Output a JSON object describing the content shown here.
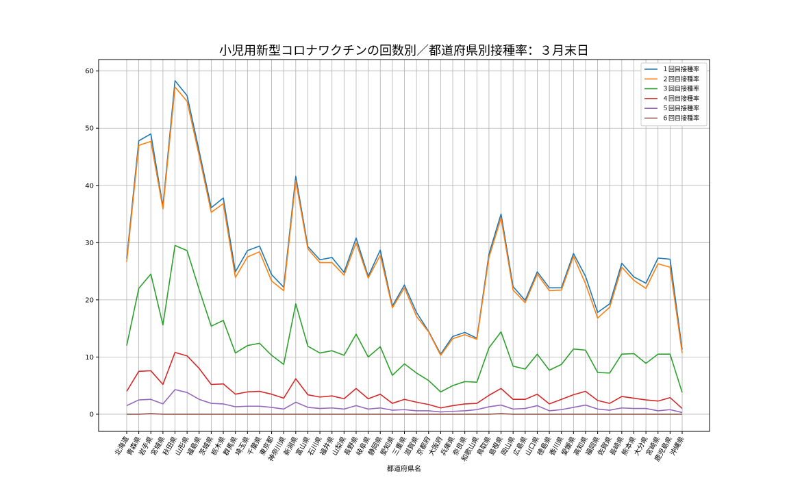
{
  "chart_data": {
    "type": "line",
    "title": "小児用新型コロナワクチンの回数別／都道府県別接種率：３月末日",
    "xlabel": "都道府県名",
    "ylabel": "",
    "ylim": [
      -3,
      62
    ],
    "yticks": [
      0,
      10,
      20,
      30,
      40,
      50,
      60
    ],
    "grid": true,
    "legend_position": "top-right",
    "categories": [
      "北海道",
      "青森県",
      "岩手県",
      "宮城県",
      "秋田県",
      "山形県",
      "福島県",
      "茨城県",
      "栃木県",
      "群馬県",
      "埼玉県",
      "千葉県",
      "東京都",
      "神奈川県",
      "新潟県",
      "富山県",
      "石川県",
      "福井県",
      "山梨県",
      "長野県",
      "岐阜県",
      "静岡県",
      "愛知県",
      "三重県",
      "滋賀県",
      "京都府",
      "大阪府",
      "兵庫県",
      "奈良県",
      "和歌山県",
      "鳥取県",
      "島根県",
      "岡山県",
      "広島県",
      "山口県",
      "徳島県",
      "香川県",
      "愛媛県",
      "高知県",
      "福岡県",
      "佐賀県",
      "長崎県",
      "熊本県",
      "大分県",
      "宮崎県",
      "鹿児島県",
      "沖縄県"
    ],
    "series": [
      {
        "name": "１回目接種率",
        "color": "#1f77b4",
        "values": [
          27.2,
          47.8,
          49.0,
          36.3,
          58.3,
          55.7,
          46.0,
          36.1,
          37.8,
          24.9,
          28.6,
          29.4,
          24.4,
          22.2,
          41.6,
          29.3,
          27.0,
          27.4,
          24.8,
          30.8,
          24.1,
          28.7,
          18.9,
          22.6,
          17.8,
          14.5,
          10.5,
          13.6,
          14.3,
          13.3,
          28.0,
          35.0,
          22.3,
          19.9,
          24.9,
          22.1,
          22.1,
          28.1,
          24.1,
          17.8,
          19.3,
          26.4,
          24.0,
          22.9,
          27.3,
          27.1,
          11.3
        ]
      },
      {
        "name": "２回目接種率",
        "color": "#ff7f0e",
        "values": [
          26.6,
          47.0,
          47.7,
          35.9,
          57.2,
          54.7,
          45.2,
          35.3,
          36.8,
          23.9,
          27.5,
          28.4,
          23.3,
          21.6,
          40.8,
          28.9,
          26.5,
          26.5,
          24.3,
          30.0,
          23.8,
          27.8,
          18.6,
          22.1,
          17.1,
          14.4,
          10.3,
          13.2,
          13.9,
          13.1,
          27.4,
          34.3,
          21.7,
          19.5,
          24.5,
          21.6,
          21.7,
          27.6,
          22.8,
          16.8,
          18.7,
          25.7,
          23.4,
          22.0,
          26.3,
          25.7,
          10.7
        ]
      },
      {
        "name": "３回目接種率",
        "color": "#2ca02c",
        "values": [
          12.0,
          22.0,
          24.5,
          15.6,
          29.5,
          28.6,
          21.8,
          15.4,
          16.4,
          10.7,
          12.0,
          12.4,
          10.3,
          8.7,
          19.3,
          11.9,
          10.7,
          11.1,
          10.3,
          14.0,
          10.0,
          11.8,
          6.8,
          8.8,
          7.2,
          5.9,
          3.9,
          5.0,
          5.7,
          5.6,
          11.6,
          14.4,
          8.4,
          7.9,
          10.5,
          7.7,
          8.7,
          11.4,
          11.2,
          7.3,
          7.2,
          10.5,
          10.6,
          8.9,
          10.5,
          10.5,
          3.8
        ]
      },
      {
        "name": "４回目接種率",
        "color": "#d62728",
        "values": [
          4.0,
          7.5,
          7.6,
          5.2,
          10.8,
          10.2,
          8.0,
          5.2,
          5.3,
          3.5,
          3.9,
          4.0,
          3.5,
          2.8,
          6.2,
          3.4,
          3.0,
          3.2,
          2.7,
          4.5,
          2.7,
          3.5,
          1.9,
          2.6,
          2.1,
          1.7,
          1.1,
          1.5,
          1.8,
          1.9,
          3.3,
          4.5,
          2.6,
          2.6,
          3.5,
          1.8,
          2.6,
          3.4,
          4.0,
          2.4,
          1.9,
          3.1,
          2.8,
          2.5,
          2.3,
          2.9,
          1.0
        ]
      },
      {
        "name": "５回目接種率",
        "color": "#9467bd",
        "values": [
          1.5,
          2.5,
          2.6,
          1.8,
          4.3,
          3.8,
          2.6,
          1.9,
          1.8,
          1.3,
          1.4,
          1.4,
          1.2,
          0.9,
          2.1,
          1.2,
          1.0,
          1.1,
          0.9,
          1.5,
          0.9,
          1.1,
          0.7,
          0.8,
          0.6,
          0.6,
          0.4,
          0.5,
          0.6,
          0.8,
          1.3,
          1.6,
          0.9,
          1.0,
          1.5,
          0.6,
          0.8,
          1.2,
          1.6,
          0.9,
          0.7,
          1.1,
          1.0,
          1.0,
          0.6,
          0.8,
          0.3
        ]
      },
      {
        "name": "６回目接種率",
        "color": "#8c564b",
        "values": [
          0.0,
          0.0,
          0.1,
          0.0,
          0.0,
          0.0,
          0.0,
          0.0,
          0.0,
          0.0,
          0.0,
          0.0,
          0.0,
          0.0,
          0.0,
          0.0,
          0.0,
          0.0,
          0.0,
          0.0,
          0.0,
          0.0,
          0.0,
          0.0,
          0.0,
          0.0,
          0.0,
          0.0,
          0.0,
          0.0,
          0.0,
          0.1,
          0.0,
          0.0,
          0.0,
          0.0,
          0.0,
          0.0,
          0.0,
          0.0,
          0.0,
          0.0,
          0.0,
          0.0,
          0.0,
          0.0,
          0.0
        ]
      }
    ]
  }
}
